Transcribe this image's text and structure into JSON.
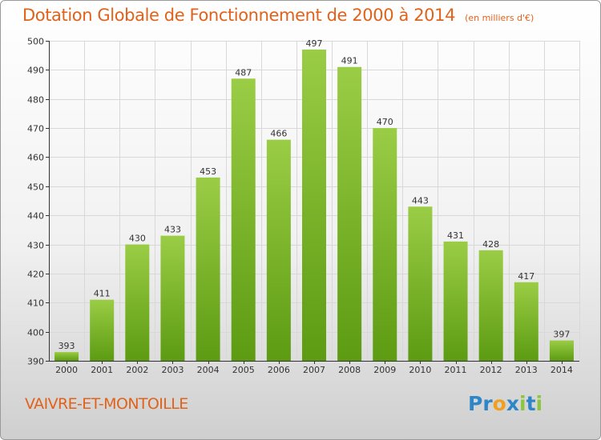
{
  "colors": {
    "title": "#e0621b",
    "bar_top": "#9acd45",
    "bar_bottom": "#5c9b12",
    "grid": "#d8d8d8",
    "axis": "#333333"
  },
  "brand": {
    "letters": [
      {
        "ch": "P",
        "color": "#2c86c8"
      },
      {
        "ch": "r",
        "color": "#2c86c8"
      },
      {
        "ch": "o",
        "color": "#f0a020"
      },
      {
        "ch": "x",
        "color": "#2c86c8"
      },
      {
        "ch": "i",
        "color": "#8cc63f"
      },
      {
        "ch": "t",
        "color": "#2c86c8"
      },
      {
        "ch": "i",
        "color": "#8cc63f"
      }
    ]
  },
  "commune": "VAIVRE-ET-MONTOILLE",
  "chart_data": {
    "type": "bar",
    "title": "Dotation Globale de Fonctionnement de 2000 à 2014",
    "subtitle": "(en milliers d'€)",
    "xlabel": "",
    "ylabel": "",
    "categories": [
      "2000",
      "2001",
      "2002",
      "2003",
      "2004",
      "2005",
      "2006",
      "2007",
      "2008",
      "2009",
      "2010",
      "2011",
      "2012",
      "2013",
      "2014"
    ],
    "values": [
      393,
      411,
      430,
      433,
      453,
      487,
      466,
      497,
      491,
      470,
      443,
      431,
      428,
      417,
      397
    ],
    "ylim": [
      390,
      500
    ],
    "yticks": [
      390,
      400,
      410,
      420,
      430,
      440,
      450,
      460,
      470,
      480,
      490,
      500
    ],
    "grid": true,
    "legend": "none"
  }
}
